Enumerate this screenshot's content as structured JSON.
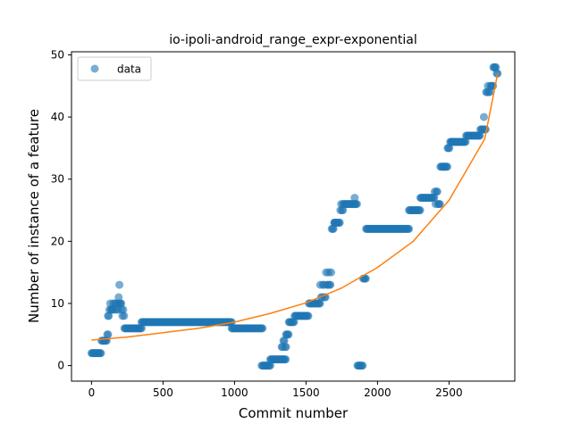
{
  "chart_data": {
    "type": "scatter",
    "title": "io-ipoli-android_range_expr-exponential",
    "xlabel": "Commit number",
    "ylabel": "Number of instance of a feature",
    "xlim": [
      -140,
      2960
    ],
    "ylim": [
      -2.5,
      50.5
    ],
    "xticks": [
      0,
      500,
      1000,
      1500,
      2000,
      2500
    ],
    "yticks": [
      0,
      10,
      20,
      30,
      40,
      50
    ],
    "legend": {
      "position": "top-left",
      "entries": [
        "data"
      ]
    },
    "colors": {
      "data": "#1f77b4",
      "fit": "#ff7f0e"
    },
    "series": [
      {
        "name": "data",
        "kind": "scatter",
        "segments": [
          [
            0,
            70,
            2,
            2
          ],
          [
            70,
            110,
            4,
            4
          ],
          [
            110,
            120,
            5,
            5
          ],
          [
            115,
            125,
            8,
            8
          ],
          [
            125,
            140,
            9,
            10
          ],
          [
            140,
            190,
            9,
            10
          ],
          [
            190,
            210,
            10,
            11
          ],
          [
            210,
            230,
            8,
            9
          ],
          [
            230,
            350,
            6,
            6
          ],
          [
            350,
            980,
            7,
            7
          ],
          [
            980,
            1200,
            6,
            6
          ],
          [
            1190,
            1250,
            0,
            0
          ],
          [
            1250,
            1360,
            1,
            1
          ],
          [
            1330,
            1360,
            3,
            4
          ],
          [
            1360,
            1380,
            5,
            5
          ],
          [
            1380,
            1420,
            7,
            7
          ],
          [
            1420,
            1520,
            8,
            8
          ],
          [
            1520,
            1600,
            10,
            10
          ],
          [
            1600,
            1640,
            11,
            13
          ],
          [
            1640,
            1680,
            13,
            15
          ],
          [
            1680,
            1700,
            22,
            23
          ],
          [
            1700,
            1740,
            23,
            23
          ],
          [
            1740,
            1760,
            25,
            26
          ],
          [
            1760,
            1860,
            26,
            26
          ],
          [
            1860,
            1900,
            0,
            0
          ],
          [
            1900,
            1920,
            14,
            14
          ],
          [
            1920,
            2220,
            22,
            22
          ],
          [
            2220,
            2300,
            25,
            25
          ],
          [
            2300,
            2400,
            27,
            27
          ],
          [
            2400,
            2440,
            26,
            28
          ],
          [
            2440,
            2490,
            32,
            32
          ],
          [
            2490,
            2520,
            35,
            36
          ],
          [
            2520,
            2620,
            36,
            36
          ],
          [
            2620,
            2720,
            37,
            37
          ],
          [
            2720,
            2760,
            38,
            40
          ],
          [
            2760,
            2810,
            44,
            45
          ],
          [
            2810,
            2840,
            47,
            48
          ]
        ],
        "points": [
          [
            195,
            13
          ],
          [
            1700,
            23
          ],
          [
            1840,
            27
          ]
        ]
      },
      {
        "name": "fit",
        "kind": "line",
        "x": [
          0,
          250,
          500,
          750,
          1000,
          1250,
          1500,
          1750,
          2000,
          2250,
          2500,
          2750,
          2840
        ],
        "y": [
          4.1,
          4.6,
          5.3,
          6.0,
          7.0,
          8.4,
          10.1,
          12.5,
          15.8,
          20.0,
          26.6,
          36.5,
          47.0
        ]
      }
    ]
  }
}
